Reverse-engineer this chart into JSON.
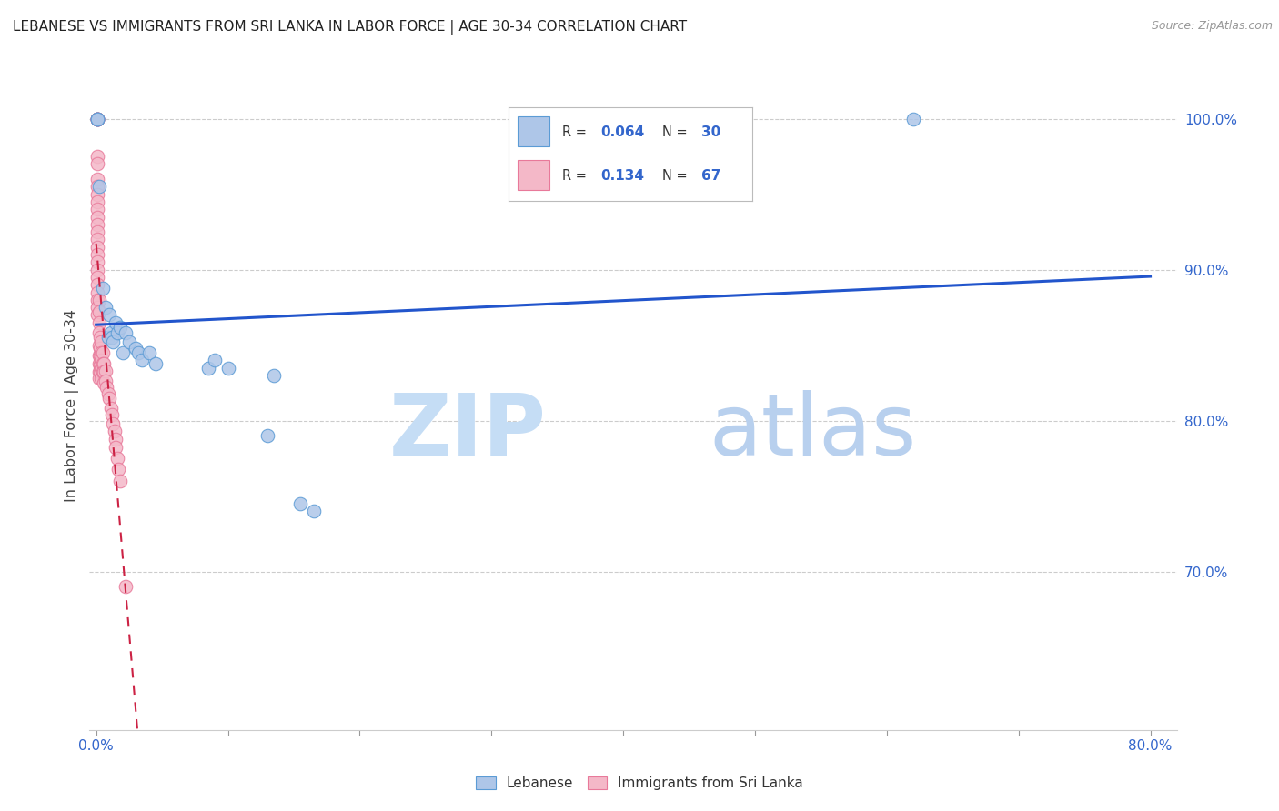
{
  "title": "LEBANESE VS IMMIGRANTS FROM SRI LANKA IN LABOR FORCE | AGE 30-34 CORRELATION CHART",
  "source": "Source: ZipAtlas.com",
  "ylabel": "In Labor Force | Age 30-34",
  "xlim": [
    -0.005,
    0.82
  ],
  "ylim": [
    0.595,
    1.025
  ],
  "yticks": [
    0.7,
    0.8,
    0.9,
    1.0
  ],
  "ytick_labels": [
    "70.0%",
    "80.0%",
    "90.0%",
    "100.0%"
  ],
  "xticks": [
    0.0,
    0.1,
    0.2,
    0.3,
    0.4,
    0.5,
    0.6,
    0.7,
    0.8
  ],
  "xtick_labels": [
    "0.0%",
    "",
    "",
    "",
    "",
    "",
    "",
    "",
    "80.0%"
  ],
  "blue_color": "#aec6e8",
  "blue_edge_color": "#5b9bd5",
  "pink_color": "#f4b8c8",
  "pink_edge_color": "#e8799a",
  "line_blue_color": "#2255cc",
  "line_pink_color": "#cc2244",
  "grid_color": "#cccccc",
  "tick_color": "#3366cc",
  "watermark_zip_color": "#c5ddf5",
  "watermark_atlas_color": "#b8d0ee",
  "blue_x": [
    0.001,
    0.001,
    0.001,
    0.002,
    0.005,
    0.007,
    0.009,
    0.01,
    0.011,
    0.012,
    0.013,
    0.015,
    0.016,
    0.018,
    0.02,
    0.022,
    0.025,
    0.03,
    0.032,
    0.035,
    0.04,
    0.045,
    0.085,
    0.09,
    0.1,
    0.13,
    0.135,
    0.155,
    0.165,
    0.62
  ],
  "blue_y": [
    1.0,
    1.0,
    1.0,
    0.955,
    0.888,
    0.875,
    0.855,
    0.87,
    0.858,
    0.855,
    0.852,
    0.865,
    0.858,
    0.862,
    0.845,
    0.858,
    0.852,
    0.848,
    0.845,
    0.84,
    0.845,
    0.838,
    0.835,
    0.84,
    0.835,
    0.79,
    0.83,
    0.745,
    0.74,
    1.0
  ],
  "pink_x": [
    0.001,
    0.001,
    0.001,
    0.001,
    0.001,
    0.001,
    0.001,
    0.001,
    0.001,
    0.001,
    0.001,
    0.001,
    0.001,
    0.001,
    0.001,
    0.001,
    0.001,
    0.001,
    0.001,
    0.001,
    0.001,
    0.001,
    0.001,
    0.001,
    0.001,
    0.001,
    0.001,
    0.002,
    0.002,
    0.002,
    0.002,
    0.002,
    0.002,
    0.002,
    0.002,
    0.002,
    0.003,
    0.003,
    0.003,
    0.003,
    0.003,
    0.004,
    0.004,
    0.004,
    0.004,
    0.004,
    0.005,
    0.005,
    0.005,
    0.006,
    0.006,
    0.006,
    0.007,
    0.007,
    0.008,
    0.009,
    0.01,
    0.011,
    0.012,
    0.013,
    0.014,
    0.015,
    0.015,
    0.016,
    0.017,
    0.018,
    0.022
  ],
  "pink_y": [
    1.0,
    1.0,
    1.0,
    1.0,
    1.0,
    1.0,
    0.975,
    0.97,
    0.96,
    0.955,
    0.95,
    0.945,
    0.94,
    0.935,
    0.93,
    0.925,
    0.92,
    0.915,
    0.91,
    0.905,
    0.9,
    0.895,
    0.89,
    0.885,
    0.88,
    0.875,
    0.87,
    0.88,
    0.872,
    0.865,
    0.858,
    0.85,
    0.843,
    0.838,
    0.832,
    0.828,
    0.855,
    0.848,
    0.843,
    0.837,
    0.832,
    0.852,
    0.845,
    0.84,
    0.835,
    0.828,
    0.845,
    0.838,
    0.832,
    0.838,
    0.832,
    0.825,
    0.833,
    0.826,
    0.822,
    0.818,
    0.815,
    0.808,
    0.804,
    0.798,
    0.793,
    0.788,
    0.782,
    0.775,
    0.768,
    0.76,
    0.69
  ]
}
